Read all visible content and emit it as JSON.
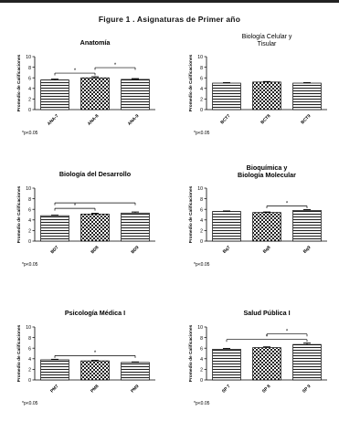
{
  "figure_title": "Figure 1 .  Asignaturas de Primer año",
  "chart_data": [
    {
      "type": "bar",
      "title": "Anatomía",
      "ylabel": "Promedio de Calificaciones",
      "ylim": [
        0,
        10
      ],
      "yticks": [
        0,
        2,
        4,
        6,
        8,
        10
      ],
      "categories": [
        "ANA-7",
        "ANA-8",
        "ANA-9"
      ],
      "values": [
        5.6,
        6.0,
        5.7
      ],
      "errors": [
        0.15,
        0.2,
        0.15
      ],
      "patterns": [
        "stripe",
        "check",
        "stripe"
      ],
      "significance": [
        {
          "from": 0,
          "to": 1,
          "label": "*"
        },
        {
          "from": 1,
          "to": 2,
          "label": "*"
        }
      ],
      "footnote": "*p<0.05"
    },
    {
      "type": "bar",
      "title": "Biología Celular y Tisular",
      "ylabel": "Promedio de Calificaciones",
      "ylim": [
        0,
        10
      ],
      "yticks": [
        0,
        2,
        4,
        6,
        8,
        10
      ],
      "categories": [
        "BCT7",
        "BCT8",
        "BCT9"
      ],
      "values": [
        5.0,
        5.2,
        5.0
      ],
      "errors": [
        0.1,
        0.1,
        0.1
      ],
      "patterns": [
        "stripe",
        "check",
        "stripe"
      ],
      "significance": [],
      "footnote": "*p<0.05"
    },
    {
      "type": "bar",
      "title": "Biología del Desarrollo",
      "ylabel": "Promedio de Calificaciones",
      "ylim": [
        0,
        10
      ],
      "yticks": [
        0,
        2,
        4,
        6,
        8,
        10
      ],
      "categories": [
        "BD7",
        "BD8",
        "BD9"
      ],
      "values": [
        4.8,
        5.1,
        5.3
      ],
      "errors": [
        0.1,
        0.15,
        0.2
      ],
      "patterns": [
        "stripe",
        "check",
        "stripe"
      ],
      "significance": [
        {
          "from": 0,
          "to": 1,
          "label": "*"
        },
        {
          "from": 0,
          "to": 2,
          "label": ""
        }
      ],
      "footnote": "*p<0.05"
    },
    {
      "type": "bar",
      "title": "Bioquímica y Biología Molecular",
      "ylabel": "Promedio de Calificaciones",
      "ylim": [
        0,
        10
      ],
      "yticks": [
        0,
        2,
        4,
        6,
        8,
        10
      ],
      "categories": [
        "Bq7",
        "Bq8",
        "Bq9"
      ],
      "values": [
        5.6,
        5.4,
        5.8
      ],
      "errors": [
        0.1,
        0.1,
        0.15
      ],
      "patterns": [
        "stripe",
        "check",
        "stripe"
      ],
      "significance": [
        {
          "from": 1,
          "to": 2,
          "label": "*"
        }
      ],
      "footnote": "*p<0.05"
    },
    {
      "type": "bar",
      "title": "Psicología Médica I",
      "ylabel": "Promedio de Calificaciones",
      "ylim": [
        0,
        10
      ],
      "yticks": [
        0,
        2,
        4,
        6,
        8,
        10
      ],
      "categories": [
        "PM7",
        "PM8",
        "PM9"
      ],
      "values": [
        3.8,
        3.6,
        3.3
      ],
      "errors": [
        0.1,
        0.1,
        0.1
      ],
      "patterns": [
        "stripe",
        "check",
        "stripe"
      ],
      "significance": [
        {
          "from": 0,
          "to": 2,
          "label": "*"
        }
      ],
      "footnote": "*p<0.05"
    },
    {
      "type": "bar",
      "title": "Salud Pública I",
      "ylabel": "Promedio de Calificaciones",
      "ylim": [
        0,
        10
      ],
      "yticks": [
        0,
        2,
        4,
        6,
        8,
        10
      ],
      "categories": [
        "SP 7",
        "SP 8",
        "SP 9"
      ],
      "values": [
        5.8,
        6.1,
        6.7
      ],
      "errors": [
        0.15,
        0.15,
        0.25
      ],
      "patterns": [
        "stripe",
        "check",
        "stripe"
      ],
      "significance": [
        {
          "from": 0,
          "to": 2,
          "label": "*"
        },
        {
          "from": 1,
          "to": 2,
          "label": "*"
        }
      ],
      "footnote": "*p<0.05"
    }
  ]
}
